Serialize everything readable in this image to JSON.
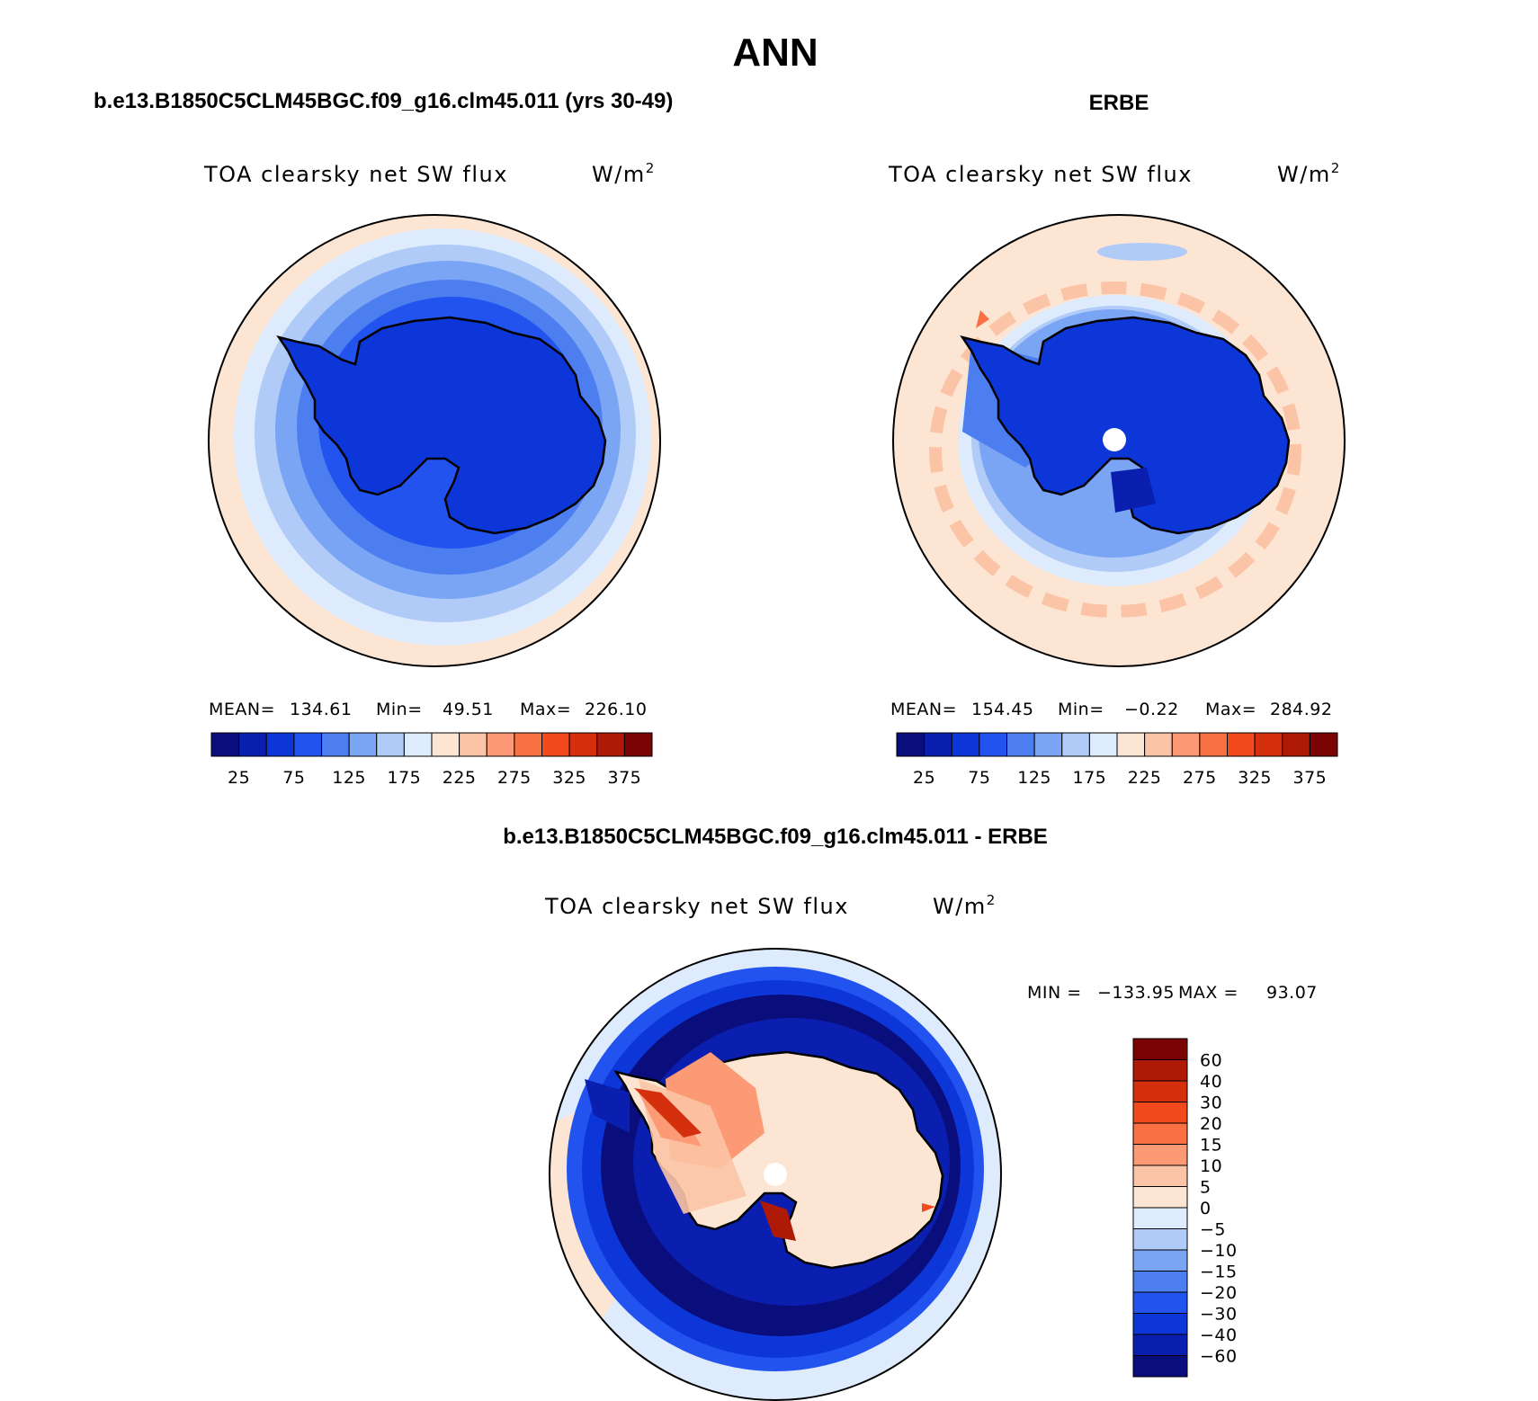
{
  "title": "ANN",
  "colors": {
    "ocean_light": "#fde5d4",
    "land_outline": "#000000",
    "pole_hole": "#ffffff"
  },
  "panels": [
    {
      "id": "model",
      "subtitle": "b.e13.B1850C5CLM45BGC.f09_g16.clm45.011 (yrs 30-49)",
      "var_label": "TOA clearsky net SW flux",
      "units_base": "W/m",
      "units_exp": "2",
      "stats": {
        "mean_label": "MEAN=",
        "mean": "134.61",
        "min_label": "Min=",
        "min": "49.51",
        "max_label": "Max=",
        "max": "226.10"
      },
      "bar_ticks": [
        "25",
        "75",
        "125",
        "175",
        "225",
        "275",
        "325",
        "375"
      ]
    },
    {
      "id": "obs",
      "subtitle": "ERBE",
      "var_label": "TOA clearsky net SW flux",
      "units_base": "W/m",
      "units_exp": "2",
      "stats": {
        "mean_label": "MEAN=",
        "mean": "154.45",
        "min_label": "Min=",
        "min": "−0.22",
        "max_label": "Max=",
        "max": "284.92"
      },
      "bar_ticks": [
        "25",
        "75",
        "125",
        "175",
        "225",
        "275",
        "325",
        "375"
      ]
    },
    {
      "id": "diff",
      "subtitle": "b.e13.B1850C5CLM45BGC.f09_g16.clm45.011 - ERBE",
      "var_label": "TOA clearsky net SW flux",
      "units_base": "W/m",
      "units_exp": "2",
      "stats": {
        "min_label": "MIN =",
        "min": "−133.95",
        "max_label": "MAX =",
        "max": "93.07"
      },
      "bar_ticks": [
        "60",
        "40",
        "30",
        "20",
        "15",
        "10",
        "5",
        "0",
        "−5",
        "−10",
        "−15",
        "−20",
        "−30",
        "−40",
        "−60"
      ]
    }
  ],
  "abs_palette": [
    "#0a0e7c",
    "#0a1fb0",
    "#0d36d8",
    "#2253ee",
    "#4c7ef0",
    "#7aa4f4",
    "#b0cbf8",
    "#ddebfc",
    "#fde5d4",
    "#fcc4a6",
    "#fb9a74",
    "#f97043",
    "#f24a1c",
    "#d5300e",
    "#af1a07",
    "#7a0303"
  ],
  "diff_palette": [
    "#7a0303",
    "#af1a07",
    "#d5300e",
    "#f24a1c",
    "#f97043",
    "#fb9a74",
    "#fcc4a6",
    "#fde5d4",
    "#ddebfc",
    "#b0cbf8",
    "#7aa4f4",
    "#4c7ef0",
    "#2253ee",
    "#0d36d8",
    "#0a1fb0",
    "#0a0e7c"
  ]
}
